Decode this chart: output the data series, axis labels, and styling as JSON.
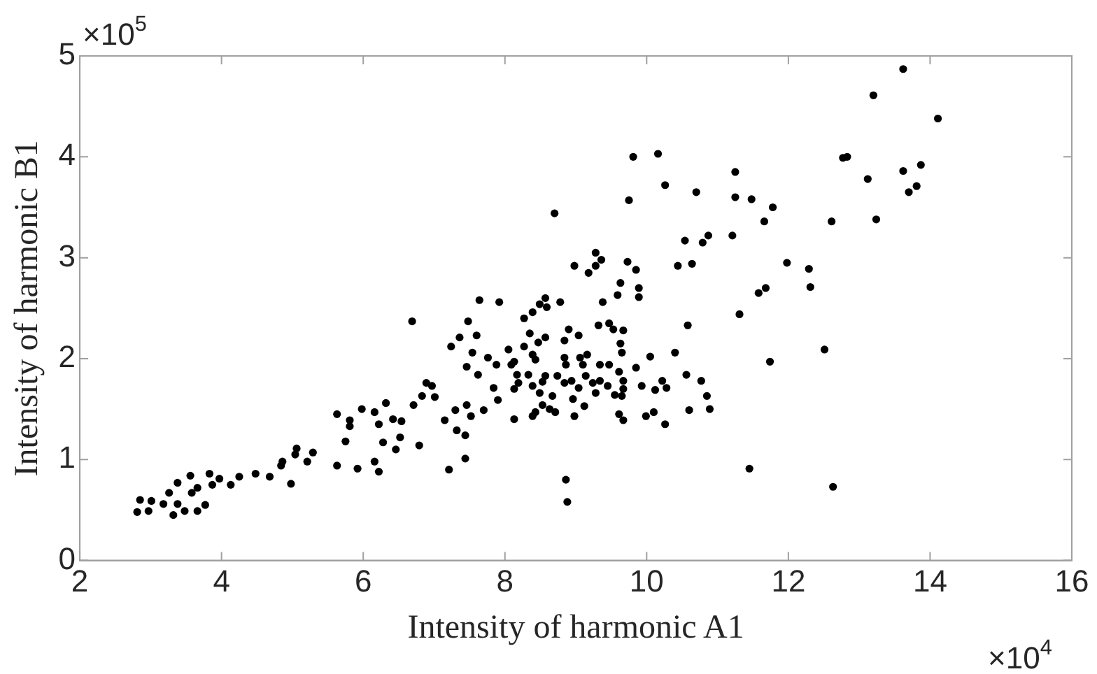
{
  "chart_data": {
    "type": "scatter",
    "xlabel": "Intensity of harmonic A1",
    "ylabel": "Intensity of harmonic B1",
    "annotations": [
      "×10$^{5}$",
      "×10$^{4}$"
    ],
    "xlim": [
      2,
      16
    ],
    "xticks": [
      2,
      4,
      6,
      8,
      10,
      12,
      14,
      16
    ],
    "ylim": [
      0,
      5
    ],
    "yticks": [
      0,
      1,
      2,
      3,
      4,
      5
    ],
    "grid": false,
    "legend": false,
    "marker": "circle",
    "series": [
      {
        "color": "#000000",
        "x": [
          2.81,
          2.97,
          2.85,
          3.01,
          3.18,
          3.32,
          3.38,
          3.48,
          3.26,
          3.38,
          3.56,
          3.58,
          3.66,
          3.77,
          3.66,
          3.83,
          3.87,
          3.97,
          4.13,
          4.25,
          4.48,
          4.68,
          4.84,
          4.86,
          4.98,
          5.06,
          5.04,
          5.21,
          5.29,
          5.63,
          5.63,
          5.75,
          5.81,
          5.81,
          5.92,
          5.98,
          6.16,
          6.16,
          6.22,
          6.28,
          6.22,
          6.32,
          6.42,
          6.46,
          6.52,
          6.54,
          6.71,
          6.79,
          6.83,
          7.01,
          7.15,
          7.21,
          7.32,
          7.3,
          7.44,
          7.44,
          7.52,
          8.98,
          9.18,
          9.28,
          9.28,
          9.36,
          9.73,
          9.85,
          10.44,
          10.64,
          9.63,
          9.59,
          9.89,
          9.89,
          7.64,
          7.92,
          8.57,
          8.78,
          8.49,
          8.59,
          8.39,
          8.27,
          9.38,
          6.69,
          7.48,
          10.58,
          9.32,
          9.47,
          9.53,
          9.67,
          8.9,
          9.04,
          8.35,
          7.36,
          7.6,
          7.24,
          7.54,
          8.05,
          8.27,
          8.47,
          8.57,
          8.84,
          9.63,
          9.65,
          10.05,
          10.4,
          7.76,
          7.46,
          7.62,
          7.88,
          8.09,
          8.13,
          8.39,
          8.43,
          8.84,
          8.86,
          9.06,
          9.16,
          9.1,
          9.34,
          9.47,
          9.61,
          9.85,
          10.56,
          10.77,
          8.17,
          8.33,
          8.57,
          8.74,
          8.94,
          9.14,
          9.34,
          8.19,
          8.13,
          8.39,
          8.53,
          8.84,
          9.04,
          9.24,
          9.45,
          9.67,
          9.67,
          9.93,
          10.22,
          10.28,
          10.12,
          7.84,
          6.89,
          6.97,
          7.9,
          8.49,
          8.67,
          8.96,
          9.28,
          9.55,
          9.65,
          10.85,
          10.89,
          10.6,
          8.53,
          8.63,
          8.71,
          8.43,
          8.39,
          8.98,
          9.12,
          8.13,
          7.7,
          7.46,
          9.61,
          9.67,
          9.99,
          10.1,
          10.26,
          8.86,
          8.88,
          9.81,
          10.16,
          10.26,
          9.75,
          10.7,
          11.25,
          11.25,
          11.48,
          11.78,
          11.66,
          12.61,
          12.77,
          10.54,
          10.79,
          10.87,
          11.21,
          11.98,
          12.29,
          12.31,
          11.58,
          11.68,
          11.31,
          11.74,
          12.51,
          11.45,
          12.63,
          13.62,
          13.2,
          14.11,
          12.83,
          13.12,
          13.62,
          13.87,
          13.81,
          13.7,
          13.24,
          8.7
        ],
        "values": [
          0.48,
          0.49,
          0.6,
          0.59,
          0.56,
          0.45,
          0.56,
          0.49,
          0.67,
          0.77,
          0.84,
          0.67,
          0.49,
          0.55,
          0.72,
          0.86,
          0.75,
          0.81,
          0.75,
          0.83,
          0.86,
          0.83,
          0.94,
          0.98,
          0.76,
          1.11,
          1.05,
          0.98,
          1.07,
          0.94,
          1.45,
          1.18,
          1.33,
          1.39,
          0.91,
          1.5,
          1.47,
          0.98,
          0.88,
          1.17,
          1.35,
          1.56,
          1.4,
          1.1,
          1.22,
          1.38,
          1.54,
          1.14,
          1.63,
          1.62,
          1.39,
          0.9,
          1.29,
          1.49,
          1.24,
          1.01,
          1.43,
          2.92,
          2.85,
          2.92,
          3.05,
          2.98,
          2.96,
          2.88,
          2.92,
          2.94,
          2.75,
          2.63,
          2.7,
          2.61,
          2.58,
          2.56,
          2.6,
          2.56,
          2.54,
          2.51,
          2.46,
          2.4,
          2.56,
          2.37,
          2.37,
          2.33,
          2.33,
          2.35,
          2.29,
          2.28,
          2.29,
          2.23,
          2.25,
          2.21,
          2.23,
          2.12,
          2.06,
          2.09,
          2.12,
          2.16,
          2.21,
          2.18,
          2.15,
          2.06,
          2.02,
          2.06,
          2.01,
          1.92,
          1.84,
          1.94,
          1.94,
          1.97,
          2.04,
          1.99,
          2.01,
          1.94,
          2.01,
          2.04,
          1.94,
          1.94,
          1.94,
          1.87,
          1.91,
          1.84,
          1.78,
          1.84,
          1.84,
          1.83,
          1.83,
          1.78,
          1.83,
          1.78,
          1.76,
          1.7,
          1.73,
          1.77,
          1.76,
          1.71,
          1.76,
          1.73,
          1.78,
          1.7,
          1.73,
          1.78,
          1.71,
          1.69,
          1.71,
          1.76,
          1.73,
          1.59,
          1.66,
          1.63,
          1.6,
          1.66,
          1.64,
          1.63,
          1.63,
          1.5,
          1.49,
          1.54,
          1.5,
          1.47,
          1.47,
          1.43,
          1.43,
          1.53,
          1.4,
          1.49,
          1.54,
          1.45,
          1.39,
          1.43,
          1.47,
          1.35,
          0.8,
          0.58,
          4.0,
          4.03,
          3.72,
          3.57,
          3.65,
          3.85,
          3.6,
          3.58,
          3.5,
          3.36,
          3.36,
          3.99,
          3.17,
          3.15,
          3.22,
          3.22,
          2.95,
          2.89,
          2.71,
          2.65,
          2.7,
          2.44,
          1.97,
          2.09,
          0.91,
          0.73,
          4.87,
          4.61,
          4.38,
          4.0,
          3.78,
          3.86,
          3.92,
          3.71,
          3.65,
          3.38,
          3.44
        ]
      }
    ]
  }
}
